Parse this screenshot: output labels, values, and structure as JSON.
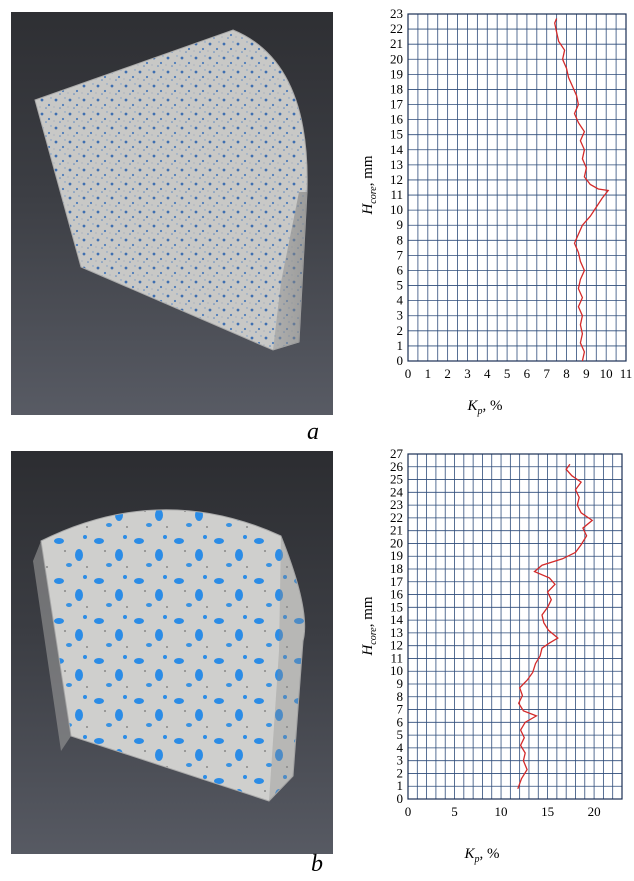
{
  "panels": [
    {
      "label": "a",
      "render_description_icon": "core-rendering-low-porosity-icon"
    },
    {
      "label": "b",
      "render_description_icon": "core-rendering-high-porosity-icon"
    }
  ],
  "colors": {
    "curve": "#d42a2a",
    "grid": "#2e4c7a",
    "pore_a": "#3f6fb0",
    "pore_b": "#2b8ce6",
    "rock": "#c9c9c9"
  },
  "chart_data": [
    {
      "type": "line",
      "xlabel_main": "K",
      "xlabel_sub": "p",
      "xlabel_unit": ", %",
      "ylabel_main": "H",
      "ylabel_sub": "core",
      "ylabel_unit": ", mm",
      "xlim": [
        0,
        11
      ],
      "ylim": [
        0,
        23
      ],
      "x_ticks": [
        0,
        1,
        2,
        3,
        4,
        5,
        6,
        7,
        8,
        9,
        10,
        11
      ],
      "y_ticks": [
        0,
        1,
        2,
        3,
        4,
        5,
        6,
        7,
        8,
        9,
        10,
        11,
        12,
        13,
        14,
        15,
        16,
        17,
        18,
        19,
        20,
        21,
        22,
        23
      ],
      "x_minor_step": 0.5,
      "y_minor_step": 1,
      "grid": true,
      "series": [
        {
          "points": [
            [
              8.8,
              0
            ],
            [
              8.9,
              0.6
            ],
            [
              8.7,
              1.2
            ],
            [
              8.8,
              1.8
            ],
            [
              8.7,
              2.4
            ],
            [
              8.8,
              3.0
            ],
            [
              8.6,
              3.6
            ],
            [
              8.8,
              4.2
            ],
            [
              8.6,
              4.8
            ],
            [
              8.7,
              5.4
            ],
            [
              8.9,
              6.0
            ],
            [
              8.7,
              6.6
            ],
            [
              8.6,
              7.2
            ],
            [
              8.4,
              7.8
            ],
            [
              8.6,
              8.4
            ],
            [
              8.8,
              9.0
            ],
            [
              9.2,
              9.6
            ],
            [
              9.5,
              10.2
            ],
            [
              9.8,
              10.8
            ],
            [
              10.1,
              11.3
            ],
            [
              9.6,
              11.4
            ],
            [
              9.2,
              11.7
            ],
            [
              8.9,
              12.2
            ],
            [
              9.0,
              12.8
            ],
            [
              8.8,
              13.4
            ],
            [
              8.9,
              14.0
            ],
            [
              8.7,
              14.6
            ],
            [
              8.9,
              15.2
            ],
            [
              8.6,
              15.8
            ],
            [
              8.4,
              16.4
            ],
            [
              8.6,
              17.0
            ],
            [
              8.5,
              17.6
            ],
            [
              8.3,
              18.2
            ],
            [
              8.1,
              18.8
            ],
            [
              8.0,
              19.4
            ],
            [
              7.8,
              20.0
            ],
            [
              7.9,
              20.6
            ],
            [
              7.6,
              21.2
            ],
            [
              7.5,
              21.8
            ],
            [
              7.4,
              22.4
            ],
            [
              7.5,
              22.7
            ]
          ]
        }
      ]
    },
    {
      "type": "line",
      "xlabel_main": "K",
      "xlabel_sub": "p",
      "xlabel_unit": ", %",
      "ylabel_main": "H",
      "ylabel_sub": "core",
      "ylabel_unit": ", mm",
      "xlim": [
        0,
        23
      ],
      "ylim": [
        0,
        27
      ],
      "x_ticks": [
        0,
        5,
        10,
        15,
        20
      ],
      "y_ticks": [
        0,
        1,
        2,
        3,
        4,
        5,
        6,
        7,
        8,
        9,
        10,
        11,
        12,
        13,
        14,
        15,
        16,
        17,
        18,
        19,
        20,
        21,
        22,
        23,
        24,
        25,
        26,
        27
      ],
      "x_minor_step": 1,
      "y_minor_step": 1,
      "grid": true,
      "series": [
        {
          "points": [
            [
              11.8,
              0.8
            ],
            [
              12.2,
              1.6
            ],
            [
              12.8,
              2.3
            ],
            [
              12.4,
              3.0
            ],
            [
              12.6,
              3.6
            ],
            [
              12.1,
              4.2
            ],
            [
              12.5,
              4.8
            ],
            [
              12.1,
              5.4
            ],
            [
              12.6,
              6.0
            ],
            [
              13.8,
              6.5
            ],
            [
              12.4,
              6.9
            ],
            [
              11.9,
              7.5
            ],
            [
              12.3,
              8.1
            ],
            [
              12.0,
              8.7
            ],
            [
              12.8,
              9.3
            ],
            [
              13.4,
              9.9
            ],
            [
              13.7,
              10.6
            ],
            [
              14.2,
              11.2
            ],
            [
              14.4,
              11.8
            ],
            [
              15.2,
              12.2
            ],
            [
              16.1,
              12.6
            ],
            [
              15.1,
              13.2
            ],
            [
              14.6,
              13.8
            ],
            [
              14.4,
              14.4
            ],
            [
              15.0,
              15.0
            ],
            [
              15.4,
              15.6
            ],
            [
              15.0,
              16.2
            ],
            [
              15.8,
              16.8
            ],
            [
              15.2,
              17.3
            ],
            [
              13.6,
              17.8
            ],
            [
              14.4,
              18.3
            ],
            [
              16.6,
              18.8
            ],
            [
              18.0,
              19.3
            ],
            [
              18.6,
              19.9
            ],
            [
              19.2,
              20.6
            ],
            [
              18.8,
              21.2
            ],
            [
              19.8,
              21.8
            ],
            [
              18.6,
              22.4
            ],
            [
              18.2,
              23.0
            ],
            [
              18.4,
              23.6
            ],
            [
              18.0,
              24.2
            ],
            [
              18.6,
              24.8
            ],
            [
              17.6,
              25.3
            ],
            [
              17.0,
              25.8
            ],
            [
              17.4,
              26.2
            ]
          ]
        }
      ]
    }
  ]
}
